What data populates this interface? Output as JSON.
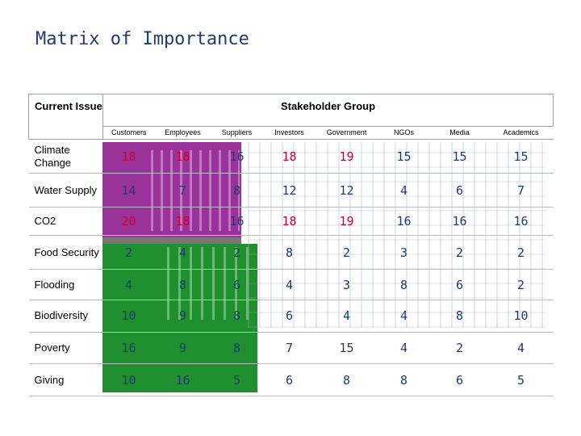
{
  "title": "Matrix of Importance",
  "matrix": {
    "corner_label": "Current Issue",
    "group_label": "Stakeholder Group",
    "columns": [
      "Customers",
      "Employees",
      "Suppliers",
      "Investors",
      "Government",
      "NGOs",
      "Media",
      "Academics"
    ],
    "rows": [
      {
        "issue": "Climate Change",
        "values": [
          "18",
          "18",
          "16",
          "18",
          "19",
          "15",
          "15",
          "15"
        ]
      },
      {
        "issue": "Water Supply",
        "values": [
          "14",
          "7",
          "8",
          "12",
          "12",
          "4",
          "6",
          "7"
        ]
      },
      {
        "issue": "CO2",
        "values": [
          "20",
          "18",
          "16",
          "18",
          "19",
          "16",
          "16",
          "16"
        ]
      },
      {
        "issue": "Food Security",
        "values": [
          "2",
          "4",
          "2",
          "8",
          "2",
          "3",
          "2",
          "2"
        ]
      },
      {
        "issue": "Flooding",
        "values": [
          "4",
          "8",
          "6",
          "4",
          "3",
          "8",
          "6",
          "2"
        ]
      },
      {
        "issue": "Biodiversity",
        "values": [
          "10",
          "9",
          "8",
          "6",
          "4",
          "4",
          "8",
          "10"
        ]
      },
      {
        "issue": "Poverty",
        "values": [
          "16",
          "9",
          "8",
          "7",
          "15",
          "4",
          "2",
          "4"
        ]
      },
      {
        "issue": "Giving",
        "values": [
          "10",
          "16",
          "5",
          "6",
          "8",
          "8",
          "6",
          "5"
        ]
      }
    ],
    "colors": {
      "high_value": "#cc0033",
      "normal_value": "#1f3b73",
      "purple_band": "#993399",
      "green_band": "#1f8f2f"
    }
  }
}
